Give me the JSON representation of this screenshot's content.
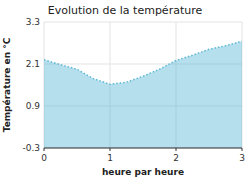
{
  "chart_data": {
    "type": "area",
    "title": "Evolution de la température",
    "x_label": "heure par heure",
    "y_label": "Température en °C",
    "x": [
      0,
      0.25,
      0.5,
      0.75,
      1.0,
      1.25,
      1.5,
      1.75,
      2.0,
      2.25,
      2.5,
      2.75,
      3.0
    ],
    "values": [
      2.22,
      2.08,
      1.95,
      1.68,
      1.52,
      1.58,
      1.75,
      1.95,
      2.2,
      2.35,
      2.52,
      2.62,
      2.75
    ],
    "xlim": [
      0,
      3
    ],
    "ylim": [
      -0.3,
      3.3
    ],
    "xticks": [
      0,
      1,
      2,
      3
    ],
    "yticks": [
      -0.3,
      0.9,
      2.1,
      3.3
    ],
    "color": "#5bb8d4",
    "line_style": "dotted",
    "grid": true
  }
}
